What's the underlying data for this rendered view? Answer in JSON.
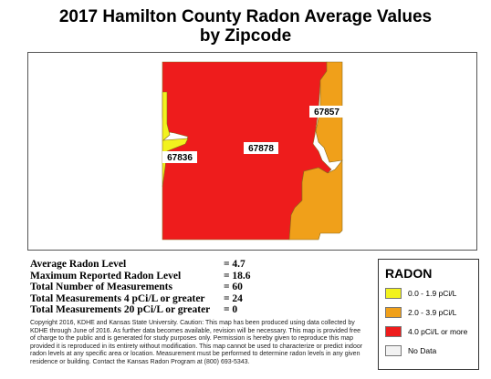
{
  "title": {
    "line1": "2017 Hamilton County Radon Average Values",
    "line2": "by Zipcode"
  },
  "map": {
    "regions": [
      {
        "zipcode": "67878",
        "range": "4.0 pCi/L or more",
        "color": "#ee1c1c"
      },
      {
        "zipcode": "67836",
        "range": "0.0 - 1.9 pCi/L",
        "color": "#f2f21e"
      },
      {
        "zipcode": "67857",
        "range": "2.0 - 3.9 pCi/L",
        "color": "#f0a01a"
      },
      {
        "zipcode": "",
        "range": "2.0 - 3.9 pCi/L",
        "color": "#f0a01a"
      }
    ]
  },
  "stats": [
    {
      "label": "Average Radon Level",
      "value": "= 4.7"
    },
    {
      "label": "Maximum Reported Radon Level",
      "value": "= 18.6"
    },
    {
      "label": "Total Number of Measurements",
      "value": "= 60"
    },
    {
      "label": "Total Measurements 4 pCi/L or greater",
      "value": "= 24"
    },
    {
      "label": "Total Measurements 20 pCi/L or greater",
      "value": "= 0"
    }
  ],
  "copyright": "Copyright 2016, KDHE and Kansas State University.  Caution: This map has been produced using data collected by KDHE through June of 2016.  As further data becomes available, revision will be necessary. This map is provided free of charge to the public and is generated for study purposes only.  Permission is hereby given to reproduce this map provided it is reproduced in its entirety without modification. This map cannot be used to characterize or predict indoor radon levels at any specific area or location. Measurement must be performed to determine radon levels in any given residence or building. Contact the Kansas Radon Program at (800) 693-5343.",
  "legend": {
    "title": "RADON",
    "items": [
      {
        "label": "0.0 - 1.9 pCi/L",
        "color": "#f2f21e"
      },
      {
        "label": "2.0 - 3.9 pCi/L",
        "color": "#f0a01a"
      },
      {
        "label": "4.0 pCi/L or more",
        "color": "#ee1c1c"
      },
      {
        "label": "No Data",
        "color": "#f2f2f2"
      }
    ]
  }
}
